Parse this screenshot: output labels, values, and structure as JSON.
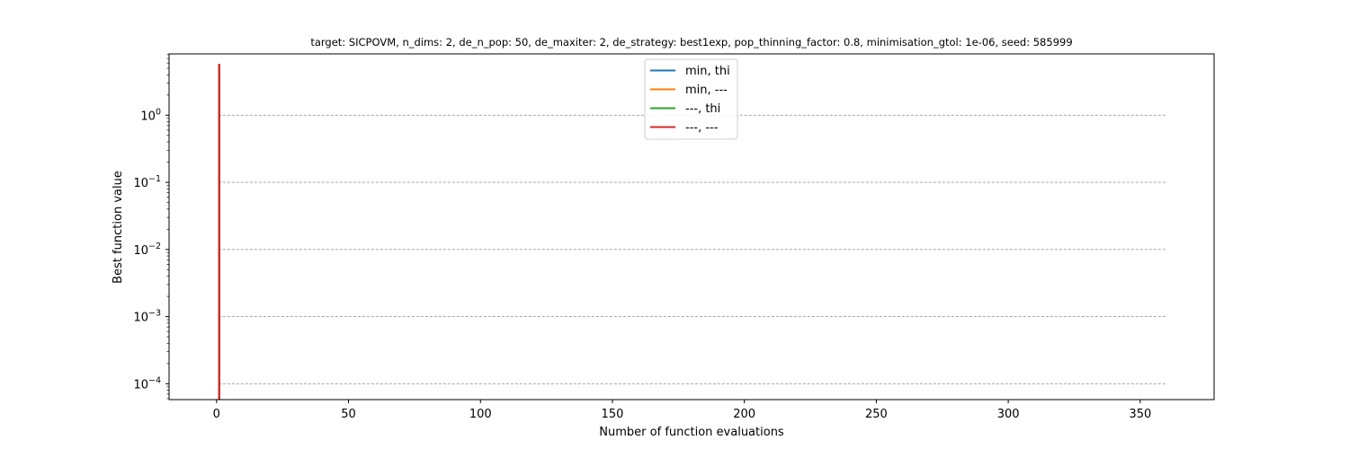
{
  "chart_data": {
    "type": "line",
    "title": "target: SICPOVM, n_dims: 2, de_n_pop: 50, de_maxiter: 2, de_strategy: best1exp, pop_thinning_factor: 0.8, minimisation_gtol: 1e-06, seed: 585999",
    "xlabel": "Number of function evaluations",
    "ylabel": "Best function value",
    "xlim": [
      -18,
      378
    ],
    "ylim": [
      5.8e-05,
      8.2
    ],
    "yscale": "log",
    "xticks": [
      0,
      50,
      100,
      150,
      200,
      250,
      300,
      350
    ],
    "xtick_labels": [
      "0",
      "50",
      "100",
      "150",
      "200",
      "250",
      "300",
      "350"
    ],
    "yticks": [
      0.0001,
      0.001,
      0.01,
      0.1,
      1
    ],
    "ytick_labels": [
      {
        "base": "10",
        "exp": "−4"
      },
      {
        "base": "10",
        "exp": "−3"
      },
      {
        "base": "10",
        "exp": "−2"
      },
      {
        "base": "10",
        "exp": "−1"
      },
      {
        "base": "10",
        "exp": "0"
      }
    ],
    "grid": {
      "y": true,
      "x": false,
      "style": "dashed",
      "color": "#999999"
    },
    "legend_position": "top-center",
    "series": [
      {
        "name": "min, thi",
        "color": "#1f77b4",
        "x": [
          1,
          1
        ],
        "y": [
          5.8,
          1e-05
        ]
      },
      {
        "name": "min, ---",
        "color": "#ff7f0e",
        "x": [
          1,
          1
        ],
        "y": [
          5.8,
          1e-05
        ]
      },
      {
        "name": "---, thi",
        "color": "#2ca02c",
        "x": [
          1,
          1
        ],
        "y": [
          5.8,
          1e-05
        ]
      },
      {
        "name": "---, ---",
        "color": "#d62728",
        "x": [
          1,
          1
        ],
        "y": [
          5.8,
          1e-05
        ]
      }
    ]
  }
}
